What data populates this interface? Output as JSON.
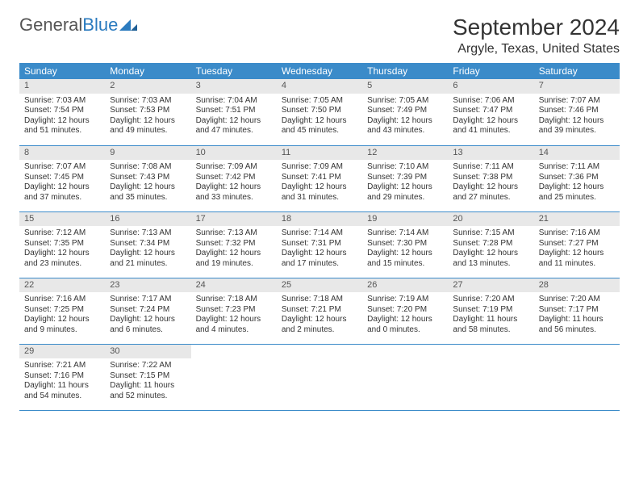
{
  "logo": {
    "part1": "General",
    "part2": "Blue"
  },
  "title": "September 2024",
  "location": "Argyle, Texas, United States",
  "colors": {
    "header_bg": "#3b8bc9",
    "header_fg": "#ffffff",
    "daynum_bg": "#e8e8e8",
    "row_border": "#3b8bc9",
    "text": "#333333",
    "logo_gray": "#555555",
    "logo_blue": "#2b7bbf",
    "page_bg": "#ffffff"
  },
  "headers": [
    "Sunday",
    "Monday",
    "Tuesday",
    "Wednesday",
    "Thursday",
    "Friday",
    "Saturday"
  ],
  "weeks": [
    [
      {
        "n": "1",
        "sr": "7:03 AM",
        "ss": "7:54 PM",
        "dl": "12 hours and 51 minutes."
      },
      {
        "n": "2",
        "sr": "7:03 AM",
        "ss": "7:53 PM",
        "dl": "12 hours and 49 minutes."
      },
      {
        "n": "3",
        "sr": "7:04 AM",
        "ss": "7:51 PM",
        "dl": "12 hours and 47 minutes."
      },
      {
        "n": "4",
        "sr": "7:05 AM",
        "ss": "7:50 PM",
        "dl": "12 hours and 45 minutes."
      },
      {
        "n": "5",
        "sr": "7:05 AM",
        "ss": "7:49 PM",
        "dl": "12 hours and 43 minutes."
      },
      {
        "n": "6",
        "sr": "7:06 AM",
        "ss": "7:47 PM",
        "dl": "12 hours and 41 minutes."
      },
      {
        "n": "7",
        "sr": "7:07 AM",
        "ss": "7:46 PM",
        "dl": "12 hours and 39 minutes."
      }
    ],
    [
      {
        "n": "8",
        "sr": "7:07 AM",
        "ss": "7:45 PM",
        "dl": "12 hours and 37 minutes."
      },
      {
        "n": "9",
        "sr": "7:08 AM",
        "ss": "7:43 PM",
        "dl": "12 hours and 35 minutes."
      },
      {
        "n": "10",
        "sr": "7:09 AM",
        "ss": "7:42 PM",
        "dl": "12 hours and 33 minutes."
      },
      {
        "n": "11",
        "sr": "7:09 AM",
        "ss": "7:41 PM",
        "dl": "12 hours and 31 minutes."
      },
      {
        "n": "12",
        "sr": "7:10 AM",
        "ss": "7:39 PM",
        "dl": "12 hours and 29 minutes."
      },
      {
        "n": "13",
        "sr": "7:11 AM",
        "ss": "7:38 PM",
        "dl": "12 hours and 27 minutes."
      },
      {
        "n": "14",
        "sr": "7:11 AM",
        "ss": "7:36 PM",
        "dl": "12 hours and 25 minutes."
      }
    ],
    [
      {
        "n": "15",
        "sr": "7:12 AM",
        "ss": "7:35 PM",
        "dl": "12 hours and 23 minutes."
      },
      {
        "n": "16",
        "sr": "7:13 AM",
        "ss": "7:34 PM",
        "dl": "12 hours and 21 minutes."
      },
      {
        "n": "17",
        "sr": "7:13 AM",
        "ss": "7:32 PM",
        "dl": "12 hours and 19 minutes."
      },
      {
        "n": "18",
        "sr": "7:14 AM",
        "ss": "7:31 PM",
        "dl": "12 hours and 17 minutes."
      },
      {
        "n": "19",
        "sr": "7:14 AM",
        "ss": "7:30 PM",
        "dl": "12 hours and 15 minutes."
      },
      {
        "n": "20",
        "sr": "7:15 AM",
        "ss": "7:28 PM",
        "dl": "12 hours and 13 minutes."
      },
      {
        "n": "21",
        "sr": "7:16 AM",
        "ss": "7:27 PM",
        "dl": "12 hours and 11 minutes."
      }
    ],
    [
      {
        "n": "22",
        "sr": "7:16 AM",
        "ss": "7:25 PM",
        "dl": "12 hours and 9 minutes."
      },
      {
        "n": "23",
        "sr": "7:17 AM",
        "ss": "7:24 PM",
        "dl": "12 hours and 6 minutes."
      },
      {
        "n": "24",
        "sr": "7:18 AM",
        "ss": "7:23 PM",
        "dl": "12 hours and 4 minutes."
      },
      {
        "n": "25",
        "sr": "7:18 AM",
        "ss": "7:21 PM",
        "dl": "12 hours and 2 minutes."
      },
      {
        "n": "26",
        "sr": "7:19 AM",
        "ss": "7:20 PM",
        "dl": "12 hours and 0 minutes."
      },
      {
        "n": "27",
        "sr": "7:20 AM",
        "ss": "7:19 PM",
        "dl": "11 hours and 58 minutes."
      },
      {
        "n": "28",
        "sr": "7:20 AM",
        "ss": "7:17 PM",
        "dl": "11 hours and 56 minutes."
      }
    ],
    [
      {
        "n": "29",
        "sr": "7:21 AM",
        "ss": "7:16 PM",
        "dl": "11 hours and 54 minutes."
      },
      {
        "n": "30",
        "sr": "7:22 AM",
        "ss": "7:15 PM",
        "dl": "11 hours and 52 minutes."
      },
      null,
      null,
      null,
      null,
      null
    ]
  ],
  "labels": {
    "sunrise": "Sunrise:",
    "sunset": "Sunset:",
    "daylight": "Daylight:"
  }
}
